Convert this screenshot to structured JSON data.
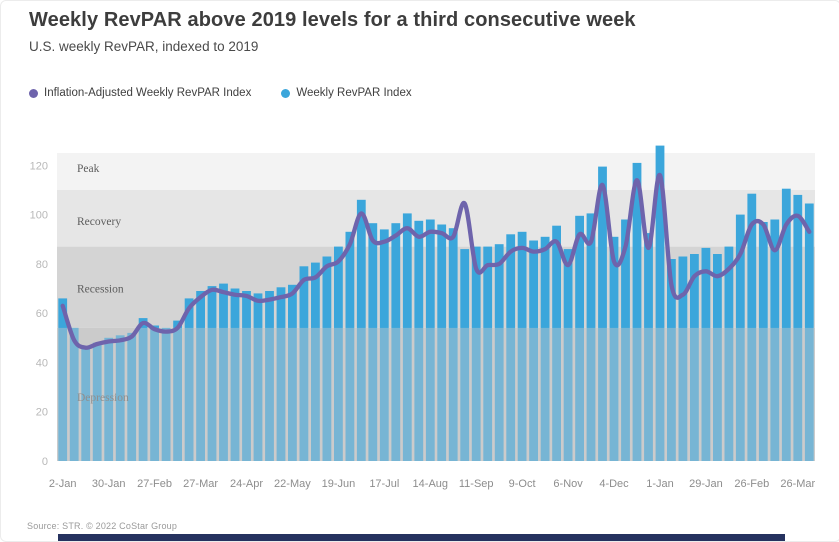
{
  "header": {
    "title": "Weekly RevPAR above 2019 levels for a third consecutive week",
    "subtitle": "U.S. weekly RevPAR, indexed to 2019"
  },
  "legend": [
    {
      "label": "Inflation-Adjusted Weekly RevPAR Index",
      "color": "#6E64AC"
    },
    {
      "label": "Weekly RevPAR Index",
      "color": "#3BA6DB"
    }
  ],
  "footer": {
    "source": "Source: STR. © 2022 CoStar Group",
    "strip_color": "#26325F"
  },
  "chart_data": {
    "type": "bar",
    "title": "Weekly RevPAR above 2019 levels for a third consecutive week",
    "subtitle": "U.S. weekly RevPAR, indexed to 2019",
    "xlabel": "",
    "ylabel": "",
    "ylim": [
      0,
      125
    ],
    "yticks": [
      0,
      20,
      40,
      60,
      80,
      100,
      120
    ],
    "grid": false,
    "legend_position": "top-left",
    "x_count": 66,
    "x_tick_every": 4,
    "x_tick_labels": [
      "2-Jan",
      "30-Jan",
      "27-Feb",
      "27-Mar",
      "24-Apr",
      "22-May",
      "19-Jun",
      "17-Jul",
      "14-Aug",
      "11-Sep",
      "9-Oct",
      "6-Nov",
      "4-Dec",
      "1-Jan",
      "29-Jan",
      "26-Feb",
      "26-Mar"
    ],
    "bands": [
      {
        "label": "Depression",
        "from": 0,
        "to": 54,
        "color": "#cbcbcb",
        "label_color": "#8f8f8f",
        "label_value": 26
      },
      {
        "label": "Recession",
        "from": 54,
        "to": 87,
        "color": "#d4d4d4",
        "label_color": "#5d5d5d",
        "label_value": 70
      },
      {
        "label": "Recovery",
        "from": 87,
        "to": 110,
        "color": "#e6e6e6",
        "label_color": "#5d5d5d",
        "label_value": 97.5
      },
      {
        "label": "Peak",
        "from": 110,
        "to": 125,
        "color": "#f3f3f3",
        "label_color": "#5d5d5d",
        "label_value": 119
      }
    ],
    "series": [
      {
        "name": "Weekly RevPAR Index",
        "render": "bar",
        "color": "#3BA6DB",
        "values": [
          66,
          54,
          46,
          48,
          50,
          51,
          52,
          58,
          55,
          54,
          57,
          66,
          69,
          71,
          72,
          70,
          69,
          68,
          69,
          70.5,
          71.5,
          79,
          80.5,
          83,
          87,
          93,
          106,
          96.5,
          94,
          96.5,
          100.5,
          97.5,
          98,
          96,
          94.5,
          86,
          87,
          87,
          88,
          92,
          93,
          89.5,
          91,
          95.5,
          86,
          99.5,
          100.5,
          119.5,
          91,
          98,
          121,
          92.5,
          128,
          82,
          83,
          84,
          86.5,
          84,
          87,
          100,
          108.5,
          97,
          98,
          110.5,
          108,
          104.5
        ]
      },
      {
        "name": "Inflation-Adjusted Weekly RevPAR Index",
        "render": "line",
        "color": "#6E64AC",
        "values": [
          63,
          49,
          46,
          47.5,
          48.5,
          49,
          50.5,
          56,
          53.5,
          52.5,
          54,
          62,
          66.5,
          69.5,
          68.5,
          67.5,
          67,
          65,
          65.5,
          66.5,
          68,
          73.5,
          74.5,
          79,
          81,
          88,
          100.5,
          89.5,
          89,
          91.5,
          94.5,
          91,
          93,
          92.5,
          91,
          104.5,
          78,
          79.5,
          80,
          85,
          86.5,
          85,
          86,
          89,
          79.5,
          92,
          89,
          112,
          81,
          87,
          114,
          86.5,
          116,
          71.5,
          67.5,
          75,
          77,
          75,
          78,
          84,
          96,
          96,
          85.5,
          96,
          99.5,
          93
        ]
      }
    ],
    "depression_overlay_color": "rgba(203,203,203,0.42)",
    "axis_text_colors": {
      "y_ticks": "#b8b8b8",
      "x_ticks": "#8d8d8d"
    }
  }
}
